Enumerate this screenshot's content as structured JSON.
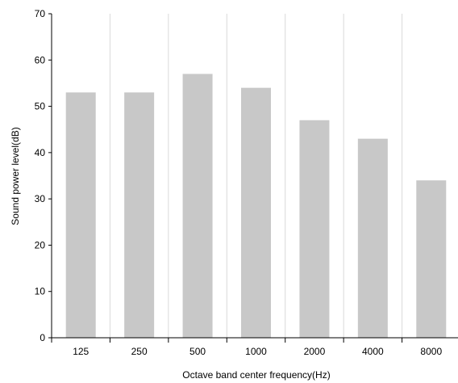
{
  "chart_data": {
    "type": "bar",
    "categories": [
      "125",
      "250",
      "500",
      "1000",
      "2000",
      "4000",
      "8000"
    ],
    "values": [
      53,
      53,
      57,
      54,
      47,
      43,
      34
    ],
    "xlabel": "Octave band center frequency(Hz)",
    "ylabel": "Sound power level(dB)",
    "ylim": [
      0,
      70
    ],
    "yticks": [
      0,
      10,
      20,
      30,
      40,
      50,
      60,
      70
    ],
    "grid": "vertical",
    "bar_color": "#c8c8c8",
    "grid_color": "#d9d9d9"
  }
}
